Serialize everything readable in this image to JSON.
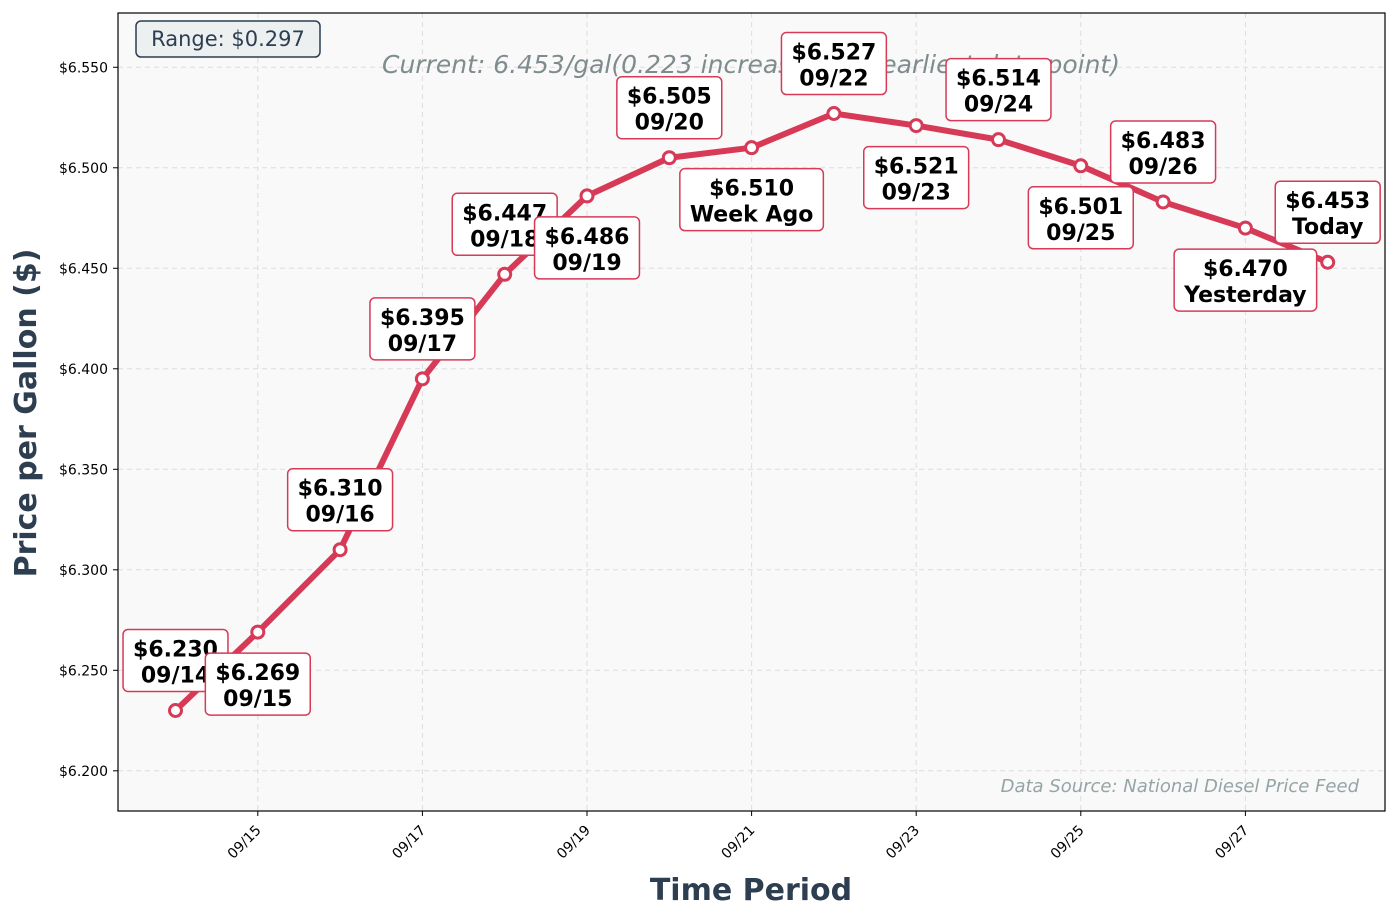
{
  "chart_data": {
    "type": "line",
    "x": [
      "09/14",
      "09/15",
      "09/16",
      "09/17",
      "09/18",
      "09/19",
      "09/20",
      "09/21",
      "09/22",
      "09/23",
      "09/24",
      "09/25",
      "09/26",
      "09/27",
      "09/28"
    ],
    "values": [
      6.23,
      6.269,
      6.31,
      6.395,
      6.447,
      6.486,
      6.505,
      6.51,
      6.527,
      6.521,
      6.514,
      6.501,
      6.483,
      6.47,
      6.453
    ],
    "point_labels": [
      [
        "$6.230",
        "09/14"
      ],
      [
        "$6.269",
        "09/15"
      ],
      [
        "$6.310",
        "09/16"
      ],
      [
        "$6.395",
        "09/17"
      ],
      [
        "$6.447",
        "09/18"
      ],
      [
        "$6.486",
        "09/19"
      ],
      [
        "$6.505",
        "09/20"
      ],
      [
        "$6.510",
        "Week Ago"
      ],
      [
        "$6.527",
        "09/22"
      ],
      [
        "$6.521",
        "09/23"
      ],
      [
        "$6.514",
        "09/24"
      ],
      [
        "$6.501",
        "09/25"
      ],
      [
        "$6.483",
        "09/26"
      ],
      [
        "$6.470",
        "Yesterday"
      ],
      [
        "$6.453",
        "Today"
      ]
    ],
    "label_side": [
      "above",
      "below",
      "above",
      "above",
      "above",
      "below",
      "above",
      "below",
      "above",
      "below",
      "above",
      "below",
      "above",
      "below",
      "above"
    ],
    "xticks": [
      "09/15",
      "09/17",
      "09/19",
      "09/21",
      "09/23",
      "09/25",
      "09/27"
    ],
    "yticks": [
      6.2,
      6.25,
      6.3,
      6.35,
      6.4,
      6.45,
      6.5,
      6.55
    ],
    "ytick_labels": [
      "$6.200",
      "$6.250",
      "$6.300",
      "$6.350",
      "$6.400",
      "$6.450",
      "$6.500",
      "$6.550"
    ],
    "ylim": [
      6.18,
      6.577
    ],
    "xlabel": "Time Period",
    "ylabel": "Price per Gallon ($)",
    "grid": true,
    "line_color": "#d63a57",
    "marker_fill": "#ffffff",
    "plot_background": "#f9f9f9"
  },
  "annotations": {
    "range": "Range: $0.297",
    "current": "Current: 6.453/gal(0.223 increase from earliest data point)",
    "source": "Data Source: National Diesel Price Feed"
  }
}
